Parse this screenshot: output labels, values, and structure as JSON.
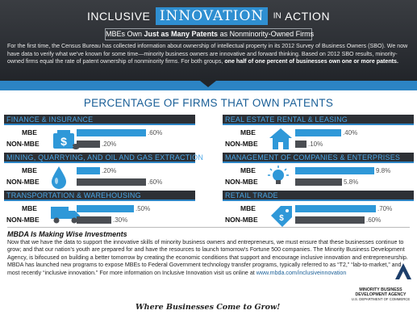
{
  "header": {
    "title_part1": "Inclusive",
    "title_part2": "Innovation",
    "title_part3": "in",
    "title_part4": "Action",
    "subtitle_pre": "MBEs Own",
    "subtitle_bold": "Just as Many Patents",
    "subtitle_post": "as Nonminority-Owned Firms",
    "intro_text": "For the first time, the Census Bureau has collected information about ownership of intellectual property in its 2012 Survey of Business Owners (SBO). We now have data to verify what we've known for some time—minority business owners are innovative and forward thinking. Based on 2012 SBO results, minority-owned firms equal the rate of patent ownership of nonminority firms. For both groups,",
    "intro_bold": "one half of one percent of businesses own one or more patents."
  },
  "chart_data": {
    "type": "bar",
    "title": "PERCENTAGE OF FIRMS THAT OWN PATENTS",
    "row_labels": [
      "MBE",
      "NON-MBE"
    ],
    "panels": [
      {
        "name": "FINANCE & INSURANCE",
        "icon": "money-bag-icon",
        "mbe": 0.6,
        "nonmbe": 0.2,
        "mbe_label": ".60%",
        "nonmbe_label": ".20%"
      },
      {
        "name": "MINING, QUARRYING, AND OIL AND GAS EXTRACTION",
        "icon": "oil-drop-icon",
        "mbe": 0.2,
        "nonmbe": 0.6,
        "mbe_label": ".20%",
        "nonmbe_label": ".60%"
      },
      {
        "name": "TRANSPORTATION & WAREHOUSING",
        "icon": "truck-icon",
        "mbe": 0.5,
        "nonmbe": 0.3,
        "mbe_label": ".50%",
        "nonmbe_label": ".30%"
      },
      {
        "name": "REAL ESTATE RENTAL & LEASING",
        "icon": "house-icon",
        "mbe": 0.4,
        "nonmbe": 0.1,
        "mbe_label": ".40%",
        "nonmbe_label": ".10%"
      },
      {
        "name": "MANAGEMENT OF COMPANIES & ENTERPRISES",
        "icon": "lightbulb-icon",
        "mbe": 9.8,
        "nonmbe": 5.8,
        "mbe_label": "9.8%",
        "nonmbe_label": "5.8%"
      },
      {
        "name": "RETAIL TRADE",
        "icon": "price-tag-icon",
        "mbe": 0.7,
        "nonmbe": 0.6,
        "mbe_label": ".70%",
        "nonmbe_label": ".60%"
      }
    ],
    "colors": {
      "mbe": "#2f98d8",
      "nonmbe": "#4a4d52"
    }
  },
  "footer": {
    "title": "MBDA Is Making Wise Investments",
    "text": "Now that we have the data to support the innovative skills of minority business owners and entrepreneurs, we must ensure that these businesses continue to grow; and that our nation's youth are prepared for and have the resources to launch tomorrow's Fortune 500 companies. The Minority Business Development Agency, is bifocused on building a better tomorrow by creating the economic conditions that support and encourage inclusive innovation and entrepreneurship. MBDA has launched new programs to expose MBEs to Federal Government technology transfer programs, typically referred to as “T2,” “lab-to-market,” and most recently “inclusive innovation.” For more information on Inclusive Innovation visit us online at",
    "link": "www.mbda.com/inclusiveinnovation",
    "tagline": "Where Businesses Come to Grow!",
    "agency_line1": "MINORITY BUSINESS",
    "agency_line2": "DEVELOPMENT AGENCY",
    "agency_line3": "U.S. DEPARTMENT OF COMMERCE"
  }
}
